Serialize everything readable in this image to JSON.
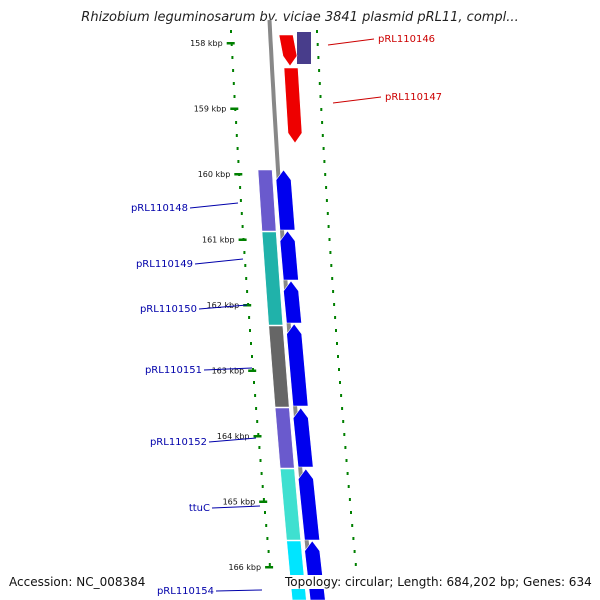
{
  "title": "Rhizobium leguminosarum bv. viciae 3841 plasmid pRL11, compl...",
  "footer": {
    "accession": "Accession: NC_008384",
    "summary": "Topology: circular; Length: 684,202 bp; Genes: 634"
  },
  "colors": {
    "tick": "#008000",
    "forward_cds": "#0000ee",
    "reverse_cds": "#ee0000",
    "backbone": "#888888",
    "label_forward": "#0000aa",
    "label_reverse": "#cc0000"
  },
  "ticks": [
    "158 kbp",
    "159 kbp",
    "160 kbp",
    "161 kbp",
    "162 kbp",
    "163 kbp",
    "164 kbp",
    "165 kbp",
    "166 kbp"
  ],
  "genes": [
    {
      "label": "pRL110146",
      "strand": "reverse"
    },
    {
      "label": "pRL110147",
      "strand": "reverse"
    },
    {
      "label": "pRL110148",
      "strand": "forward"
    },
    {
      "label": "pRL110149",
      "strand": "forward"
    },
    {
      "label": "pRL110150",
      "strand": "forward"
    },
    {
      "label": "pRL110151",
      "strand": "forward"
    },
    {
      "label": "pRL110152",
      "strand": "forward"
    },
    {
      "label": "ttuC",
      "strand": "forward"
    },
    {
      "label": "pRL110154",
      "strand": "forward"
    }
  ]
}
